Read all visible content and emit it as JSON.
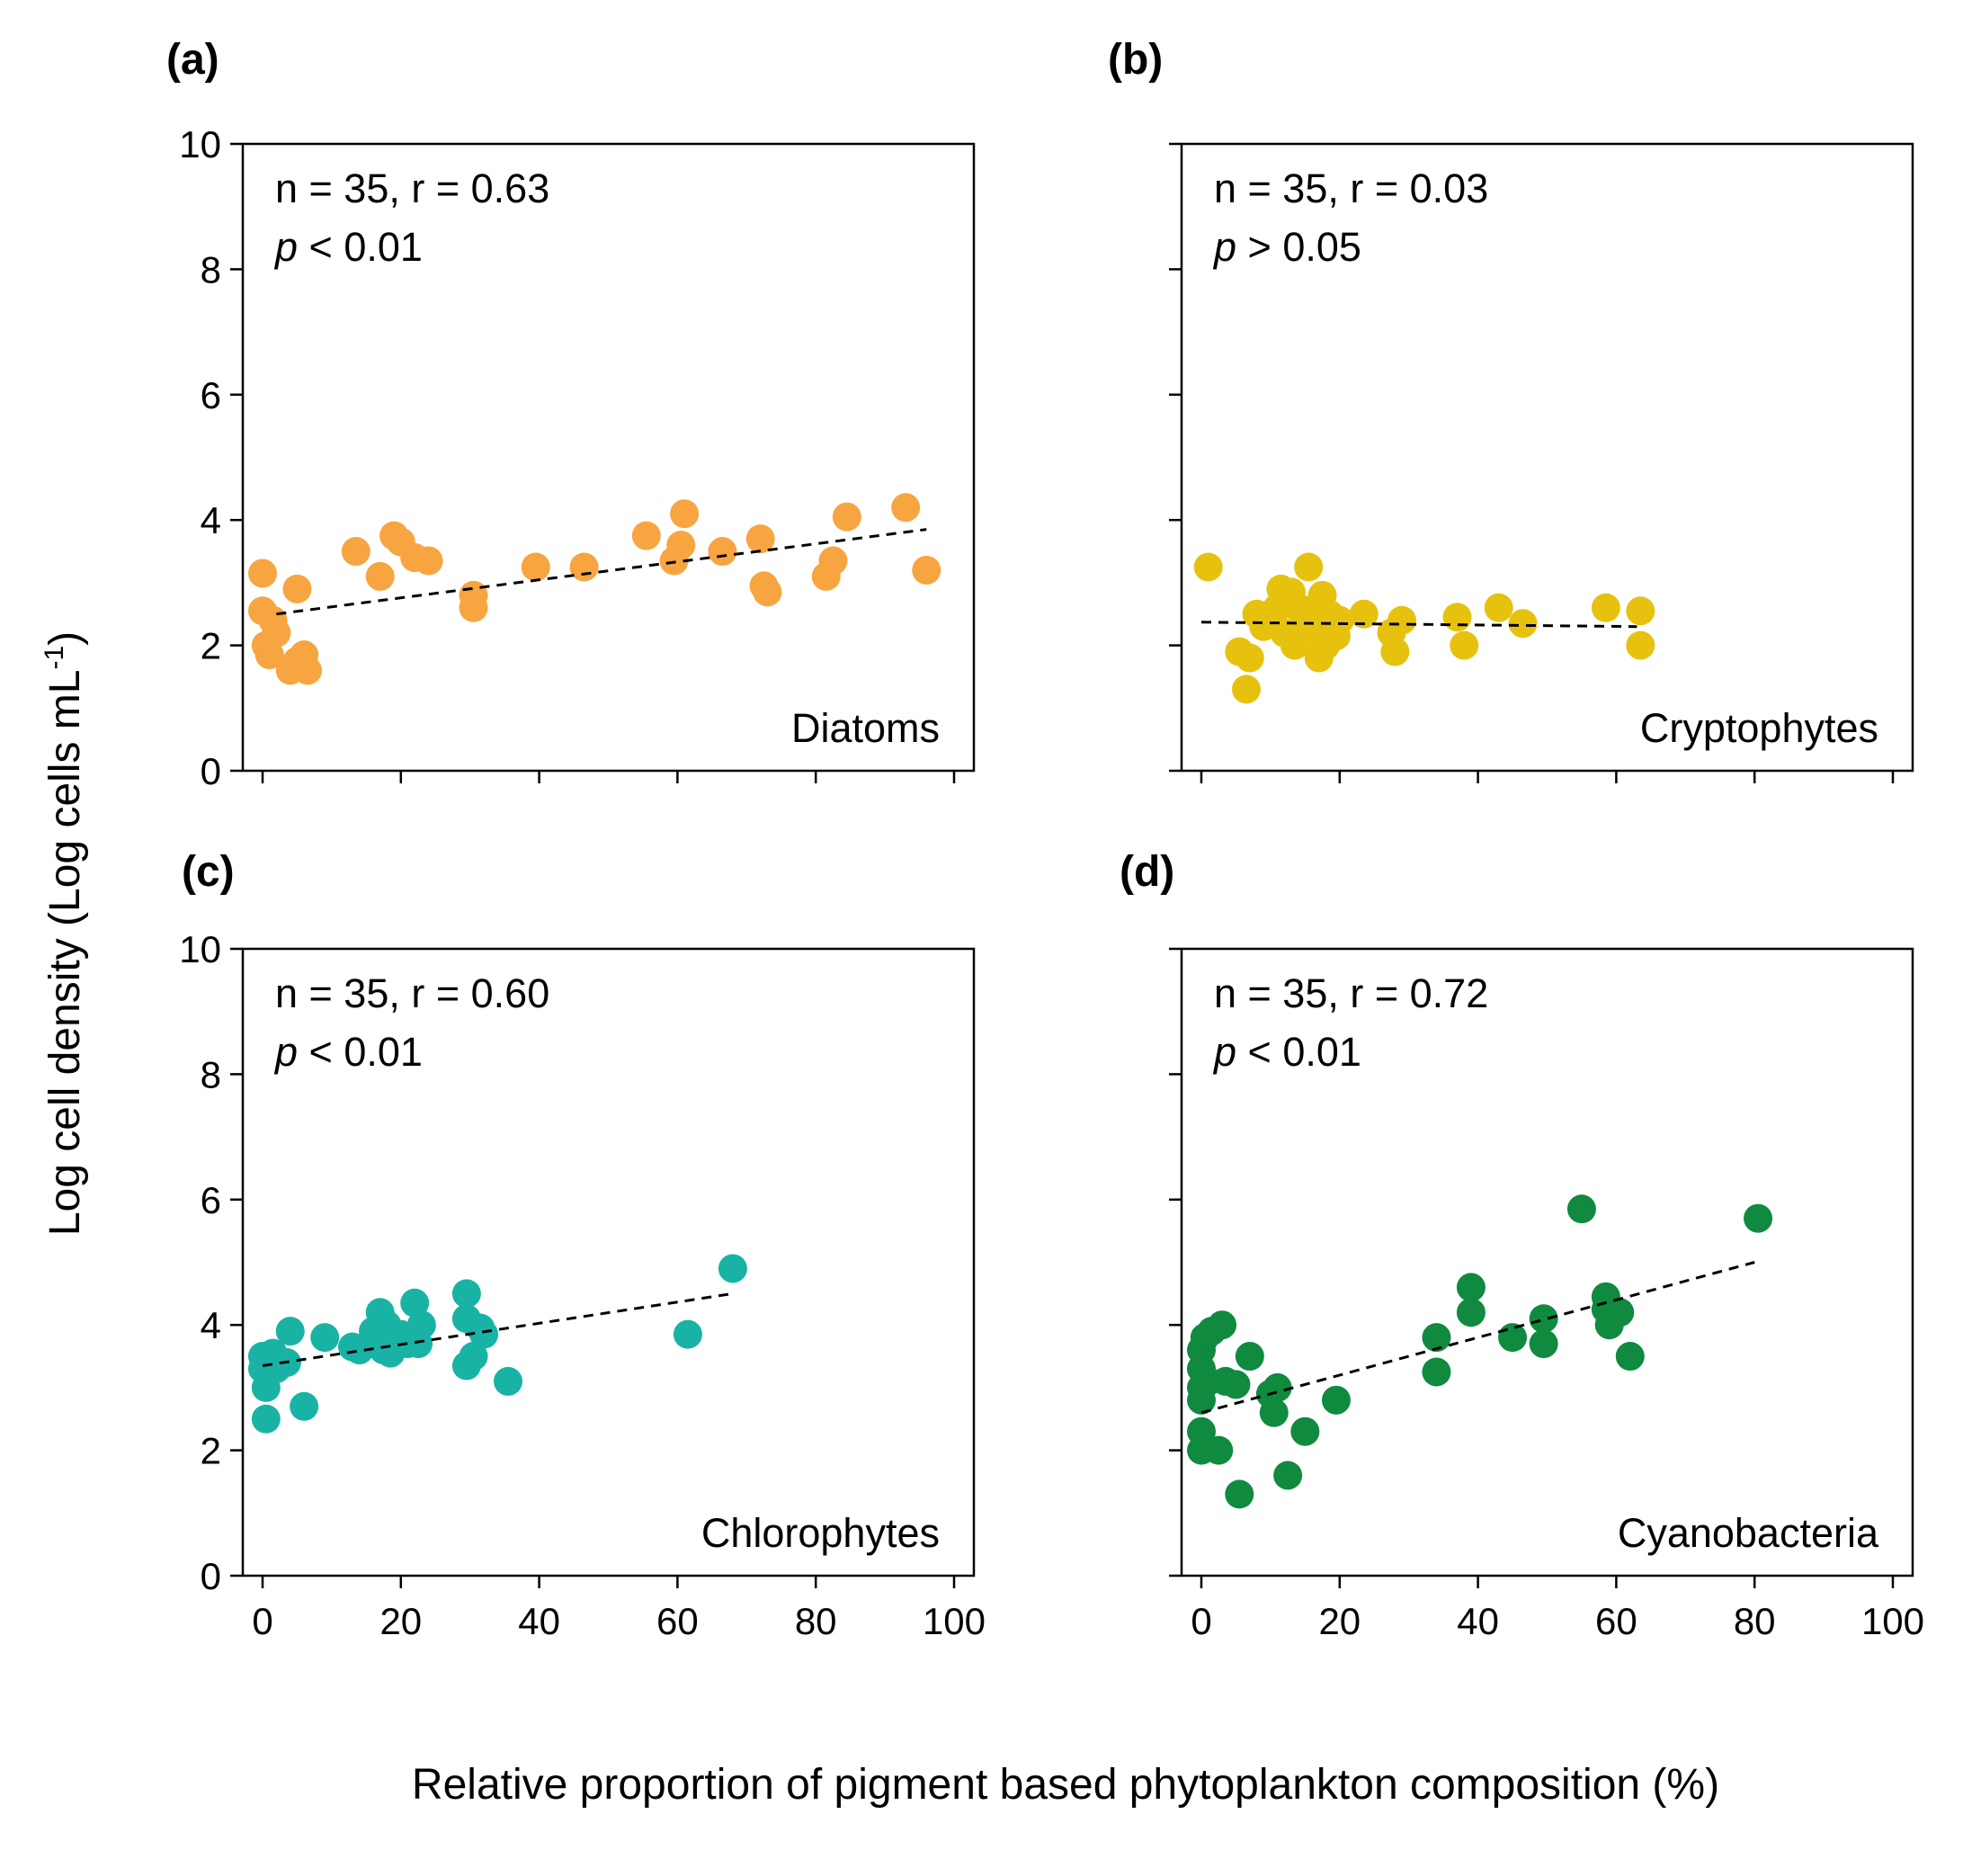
{
  "figure": {
    "xlabel": "Relative proportion of pigment based phytoplankton composition (%)",
    "ylabel": "Log cell density (Log cells mL",
    "ylabel_superscript": "-1",
    "ylabel_close": ")"
  },
  "chart_data": [
    {
      "type": "scatter",
      "panel": "(a)",
      "group": "Diatoms",
      "color": "#f7a541",
      "stat_line1": "n = 35, r = 0.63",
      "stat_p_symbol": "p",
      "stat_p_rest": " < 0.01",
      "xlim": [
        0,
        100
      ],
      "ylim": [
        0,
        10
      ],
      "xticks": [
        0,
        20,
        40,
        60,
        80,
        100
      ],
      "yticks": [
        0,
        2,
        4,
        6,
        8,
        10
      ],
      "show_x_tick_labels": false,
      "show_y_tick_labels": true,
      "trend": {
        "x": [
          2,
          96
        ],
        "y": [
          2.5,
          3.85
        ]
      },
      "points": [
        {
          "x": 0,
          "y": 3.15
        },
        {
          "x": 0,
          "y": 2.55
        },
        {
          "x": 0.5,
          "y": 2.0
        },
        {
          "x": 1,
          "y": 1.85
        },
        {
          "x": 1.5,
          "y": 2.4
        },
        {
          "x": 2,
          "y": 2.2
        },
        {
          "x": 4,
          "y": 1.6
        },
        {
          "x": 5,
          "y": 2.9
        },
        {
          "x": 5,
          "y": 1.75
        },
        {
          "x": 6,
          "y": 1.85
        },
        {
          "x": 6.5,
          "y": 1.6
        },
        {
          "x": 13.5,
          "y": 3.5
        },
        {
          "x": 17,
          "y": 3.1
        },
        {
          "x": 19,
          "y": 3.75
        },
        {
          "x": 20,
          "y": 3.65
        },
        {
          "x": 22,
          "y": 3.4
        },
        {
          "x": 24,
          "y": 3.35
        },
        {
          "x": 30.5,
          "y": 2.8
        },
        {
          "x": 30.5,
          "y": 2.6
        },
        {
          "x": 39.5,
          "y": 3.25
        },
        {
          "x": 46.5,
          "y": 3.25
        },
        {
          "x": 55.5,
          "y": 3.75
        },
        {
          "x": 59.5,
          "y": 3.35
        },
        {
          "x": 60.5,
          "y": 3.6
        },
        {
          "x": 61,
          "y": 4.1
        },
        {
          "x": 66.5,
          "y": 3.5
        },
        {
          "x": 72,
          "y": 3.7
        },
        {
          "x": 72.5,
          "y": 2.95
        },
        {
          "x": 73,
          "y": 2.85
        },
        {
          "x": 81.5,
          "y": 3.1
        },
        {
          "x": 82.5,
          "y": 3.35
        },
        {
          "x": 84.5,
          "y": 4.05
        },
        {
          "x": 93,
          "y": 4.2
        },
        {
          "x": 96,
          "y": 3.2
        }
      ]
    },
    {
      "type": "scatter",
      "panel": "(b)",
      "group": "Cryptophytes",
      "color": "#e6c20f",
      "stat_line1": "n = 35, r = 0.03",
      "stat_p_symbol": "p",
      "stat_p_rest": " > 0.05",
      "xlim": [
        0,
        100
      ],
      "ylim": [
        0,
        10
      ],
      "xticks": [
        0,
        20,
        40,
        60,
        80,
        100
      ],
      "yticks": [
        0,
        2,
        4,
        6,
        8,
        10
      ],
      "show_x_tick_labels": false,
      "show_y_tick_labels": false,
      "trend": {
        "x": [
          0,
          63
        ],
        "y": [
          2.37,
          2.3
        ]
      },
      "points": [
        {
          "x": 1,
          "y": 3.25
        },
        {
          "x": 5.5,
          "y": 1.9
        },
        {
          "x": 6.5,
          "y": 1.3
        },
        {
          "x": 7,
          "y": 1.8
        },
        {
          "x": 8,
          "y": 2.5
        },
        {
          "x": 9,
          "y": 2.3
        },
        {
          "x": 10,
          "y": 2.5
        },
        {
          "x": 11,
          "y": 2.6
        },
        {
          "x": 11.5,
          "y": 2.9
        },
        {
          "x": 12,
          "y": 2.2
        },
        {
          "x": 13,
          "y": 2.85
        },
        {
          "x": 13.5,
          "y": 2.0
        },
        {
          "x": 14,
          "y": 2.6
        },
        {
          "x": 15,
          "y": 2.3
        },
        {
          "x": 15.5,
          "y": 3.25
        },
        {
          "x": 16,
          "y": 2.2
        },
        {
          "x": 16.5,
          "y": 2.6
        },
        {
          "x": 17,
          "y": 1.8
        },
        {
          "x": 17.5,
          "y": 2.8
        },
        {
          "x": 18,
          "y": 2.0
        },
        {
          "x": 18.5,
          "y": 2.5
        },
        {
          "x": 19.5,
          "y": 2.15
        },
        {
          "x": 20,
          "y": 2.4
        },
        {
          "x": 23.5,
          "y": 2.5
        },
        {
          "x": 27.5,
          "y": 2.2
        },
        {
          "x": 28,
          "y": 1.9
        },
        {
          "x": 29,
          "y": 2.4
        },
        {
          "x": 37,
          "y": 2.45
        },
        {
          "x": 38,
          "y": 2.0
        },
        {
          "x": 43,
          "y": 2.6
        },
        {
          "x": 46.5,
          "y": 2.35
        },
        {
          "x": 58.5,
          "y": 2.6
        },
        {
          "x": 63.5,
          "y": 2.55
        },
        {
          "x": 63.5,
          "y": 2.0
        }
      ]
    },
    {
      "type": "scatter",
      "panel": "(c)",
      "group": "Chlorophytes",
      "color": "#19b3a5",
      "stat_line1": "n = 35, r = 0.60",
      "stat_p_symbol": "p",
      "stat_p_rest": " < 0.01",
      "xlim": [
        0,
        100
      ],
      "ylim": [
        0,
        10
      ],
      "xticks": [
        0,
        20,
        40,
        60,
        80,
        100
      ],
      "yticks": [
        0,
        2,
        4,
        6,
        8,
        10
      ],
      "show_x_tick_labels": true,
      "show_y_tick_labels": true,
      "trend": {
        "x": [
          0,
          68
        ],
        "y": [
          3.35,
          4.5
        ]
      },
      "points": [
        {
          "x": 0,
          "y": 3.5
        },
        {
          "x": 0,
          "y": 3.3
        },
        {
          "x": 0.5,
          "y": 3.0
        },
        {
          "x": 0.5,
          "y": 2.5
        },
        {
          "x": 1,
          "y": 3.4
        },
        {
          "x": 1.5,
          "y": 3.55
        },
        {
          "x": 2,
          "y": 3.3
        },
        {
          "x": 3.5,
          "y": 3.4
        },
        {
          "x": 4,
          "y": 3.9
        },
        {
          "x": 6,
          "y": 2.7
        },
        {
          "x": 9,
          "y": 3.8
        },
        {
          "x": 13,
          "y": 3.65
        },
        {
          "x": 14,
          "y": 3.6
        },
        {
          "x": 16,
          "y": 3.9
        },
        {
          "x": 17,
          "y": 4.2
        },
        {
          "x": 17.5,
          "y": 3.6
        },
        {
          "x": 18,
          "y": 4.0
        },
        {
          "x": 18.5,
          "y": 3.55
        },
        {
          "x": 19,
          "y": 3.75
        },
        {
          "x": 20,
          "y": 3.85
        },
        {
          "x": 21,
          "y": 3.7
        },
        {
          "x": 22,
          "y": 4.35
        },
        {
          "x": 22.5,
          "y": 3.7
        },
        {
          "x": 23,
          "y": 4.0
        },
        {
          "x": 29.5,
          "y": 4.5
        },
        {
          "x": 29.5,
          "y": 4.1
        },
        {
          "x": 29.5,
          "y": 3.35
        },
        {
          "x": 30.5,
          "y": 3.5
        },
        {
          "x": 31.5,
          "y": 3.95
        },
        {
          "x": 32,
          "y": 3.85
        },
        {
          "x": 35.5,
          "y": 3.1
        },
        {
          "x": 61.5,
          "y": 3.85
        },
        {
          "x": 68,
          "y": 4.9
        }
      ]
    },
    {
      "type": "scatter",
      "panel": "(d)",
      "group": "Cyanobacteria",
      "color": "#0f8a3f",
      "stat_line1": "n = 35, r = 0.72",
      "stat_p_symbol": "p",
      "stat_p_rest": " < 0.01",
      "xlim": [
        0,
        100
      ],
      "ylim": [
        0,
        10
      ],
      "xticks": [
        0,
        20,
        40,
        60,
        80,
        100
      ],
      "yticks": [
        0,
        2,
        4,
        6,
        8,
        10
      ],
      "show_x_tick_labels": true,
      "show_y_tick_labels": false,
      "trend": {
        "x": [
          0,
          80
        ],
        "y": [
          2.6,
          5.0
        ]
      },
      "points": [
        {
          "x": 0,
          "y": 3.6
        },
        {
          "x": 0,
          "y": 3.3
        },
        {
          "x": 0,
          "y": 3.0
        },
        {
          "x": 0,
          "y": 2.8
        },
        {
          "x": 0,
          "y": 2.3
        },
        {
          "x": 0,
          "y": 2.0
        },
        {
          "x": 0.5,
          "y": 3.8
        },
        {
          "x": 1,
          "y": 3.1
        },
        {
          "x": 1.5,
          "y": 3.9
        },
        {
          "x": 2.5,
          "y": 2.0
        },
        {
          "x": 3,
          "y": 4.0
        },
        {
          "x": 3.5,
          "y": 3.1
        },
        {
          "x": 5,
          "y": 3.05
        },
        {
          "x": 5.5,
          "y": 1.3
        },
        {
          "x": 7,
          "y": 3.5
        },
        {
          "x": 10,
          "y": 2.9
        },
        {
          "x": 10.5,
          "y": 2.6
        },
        {
          "x": 11,
          "y": 3.0
        },
        {
          "x": 12.5,
          "y": 1.6
        },
        {
          "x": 15,
          "y": 2.3
        },
        {
          "x": 19.5,
          "y": 2.8
        },
        {
          "x": 34,
          "y": 3.8
        },
        {
          "x": 34,
          "y": 3.25
        },
        {
          "x": 39,
          "y": 4.6
        },
        {
          "x": 39,
          "y": 4.2
        },
        {
          "x": 45,
          "y": 3.8
        },
        {
          "x": 49.5,
          "y": 4.1
        },
        {
          "x": 49.5,
          "y": 3.7
        },
        {
          "x": 55,
          "y": 5.85
        },
        {
          "x": 58.5,
          "y": 4.45
        },
        {
          "x": 58.5,
          "y": 4.25
        },
        {
          "x": 59,
          "y": 4.0
        },
        {
          "x": 60.5,
          "y": 4.2
        },
        {
          "x": 62,
          "y": 3.5
        },
        {
          "x": 80.5,
          "y": 5.7
        }
      ]
    }
  ]
}
